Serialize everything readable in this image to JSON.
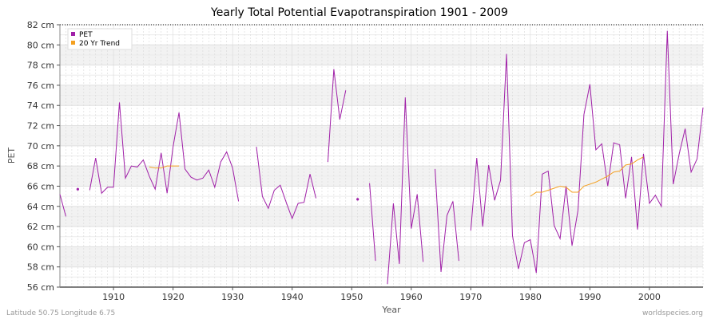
{
  "chart_data": {
    "type": "line",
    "title": "Yearly Total Potential Evapotranspiration 1901 - 2009",
    "xlabel": "Year",
    "ylabel": "PET",
    "xlim": [
      1901,
      2009
    ],
    "ylim": [
      56,
      82
    ],
    "x_ticks": [
      1910,
      1920,
      1930,
      1940,
      1950,
      1960,
      1970,
      1980,
      1990,
      2000
    ],
    "y_ticks": [
      "56 cm",
      "58 cm",
      "60 cm",
      "62 cm",
      "64 cm",
      "66 cm",
      "68 cm",
      "70 cm",
      "72 cm",
      "74 cm",
      "76 cm",
      "78 cm",
      "80 cm",
      "82 cm"
    ],
    "legend": {
      "placement": "top-left",
      "entries": [
        "PET",
        "20 Yr Trend"
      ]
    },
    "series": [
      {
        "name": "PET",
        "color": "#a020a8",
        "points": [
          [
            1901,
            65.2
          ],
          [
            1902,
            63.0
          ],
          [
            1904,
            65.7
          ],
          [
            1906,
            65.6
          ],
          [
            1907,
            68.8
          ],
          [
            1908,
            65.3
          ],
          [
            1909,
            65.9
          ],
          [
            1910,
            65.9
          ],
          [
            1911,
            74.3
          ],
          [
            1912,
            66.8
          ],
          [
            1913,
            68.0
          ],
          [
            1914,
            67.9
          ],
          [
            1915,
            68.6
          ],
          [
            1916,
            67.0
          ],
          [
            1917,
            65.7
          ],
          [
            1918,
            69.3
          ],
          [
            1919,
            65.3
          ],
          [
            1920,
            69.9
          ],
          [
            1921,
            73.3
          ],
          [
            1922,
            67.7
          ],
          [
            1923,
            66.9
          ],
          [
            1924,
            66.6
          ],
          [
            1925,
            66.8
          ],
          [
            1926,
            67.6
          ],
          [
            1927,
            65.9
          ],
          [
            1928,
            68.4
          ],
          [
            1929,
            69.4
          ],
          [
            1930,
            67.8
          ],
          [
            1931,
            64.5
          ],
          [
            1934,
            69.9
          ],
          [
            1935,
            65.0
          ],
          [
            1936,
            63.8
          ],
          [
            1937,
            65.6
          ],
          [
            1938,
            66.1
          ],
          [
            1939,
            64.4
          ],
          [
            1940,
            62.8
          ],
          [
            1941,
            64.3
          ],
          [
            1942,
            64.4
          ],
          [
            1943,
            67.2
          ],
          [
            1944,
            64.8
          ],
          [
            1946,
            68.4
          ],
          [
            1947,
            77.6
          ],
          [
            1948,
            72.6
          ],
          [
            1949,
            75.5
          ],
          [
            1951,
            64.7
          ],
          [
            1953,
            66.3
          ],
          [
            1954,
            58.6
          ],
          [
            1956,
            56.3
          ],
          [
            1957,
            64.3
          ],
          [
            1958,
            58.3
          ],
          [
            1959,
            74.8
          ],
          [
            1960,
            61.8
          ],
          [
            1961,
            65.2
          ],
          [
            1962,
            58.5
          ],
          [
            1964,
            67.7
          ],
          [
            1965,
            57.5
          ],
          [
            1966,
            63.1
          ],
          [
            1967,
            64.5
          ],
          [
            1968,
            58.6
          ],
          [
            1970,
            61.6
          ],
          [
            1971,
            68.8
          ],
          [
            1972,
            62.0
          ],
          [
            1973,
            68.1
          ],
          [
            1974,
            64.6
          ],
          [
            1975,
            66.6
          ],
          [
            1976,
            79.1
          ],
          [
            1977,
            61.1
          ],
          [
            1978,
            57.8
          ],
          [
            1979,
            60.4
          ],
          [
            1980,
            60.7
          ],
          [
            1981,
            57.4
          ],
          [
            1982,
            67.2
          ],
          [
            1983,
            67.5
          ],
          [
            1984,
            62.1
          ],
          [
            1985,
            60.8
          ],
          [
            1986,
            66.0
          ],
          [
            1987,
            60.1
          ],
          [
            1988,
            63.6
          ],
          [
            1989,
            73.1
          ],
          [
            1990,
            76.1
          ],
          [
            1991,
            69.6
          ],
          [
            1992,
            70.2
          ],
          [
            1993,
            66.0
          ],
          [
            1994,
            70.3
          ],
          [
            1995,
            70.1
          ],
          [
            1996,
            64.8
          ],
          [
            1997,
            68.9
          ],
          [
            1998,
            61.7
          ],
          [
            1999,
            69.2
          ],
          [
            2000,
            64.3
          ],
          [
            2001,
            65.1
          ],
          [
            2002,
            64.0
          ],
          [
            2003,
            81.4
          ],
          [
            2004,
            66.2
          ],
          [
            2005,
            69.2
          ],
          [
            2006,
            71.7
          ],
          [
            2007,
            67.4
          ],
          [
            2008,
            68.7
          ],
          [
            2009,
            73.8
          ]
        ]
      },
      {
        "name": "20 Yr Trend",
        "color": "#f4a020",
        "points": [
          [
            1916,
            67.9
          ],
          [
            1917,
            67.8
          ],
          [
            1918,
            67.8
          ],
          [
            1919,
            68.0
          ],
          [
            1920,
            68.0
          ],
          [
            1921,
            68.0
          ],
          [
            1980,
            65.0
          ],
          [
            1981,
            65.4
          ],
          [
            1982,
            65.4
          ],
          [
            1983,
            65.6
          ],
          [
            1984,
            65.8
          ],
          [
            1985,
            66.0
          ],
          [
            1986,
            65.9
          ],
          [
            1987,
            65.4
          ],
          [
            1988,
            65.4
          ],
          [
            1989,
            66.0
          ],
          [
            1990,
            66.2
          ],
          [
            1991,
            66.4
          ],
          [
            1992,
            66.7
          ],
          [
            1993,
            67.0
          ],
          [
            1994,
            67.4
          ],
          [
            1995,
            67.5
          ],
          [
            1996,
            68.1
          ],
          [
            1997,
            68.2
          ],
          [
            1998,
            68.6
          ],
          [
            1999,
            68.9
          ]
        ]
      }
    ],
    "grid": true
  },
  "footer": {
    "left": "Latitude 50.75 Longitude 6.75",
    "right": "worldspecies.org"
  }
}
